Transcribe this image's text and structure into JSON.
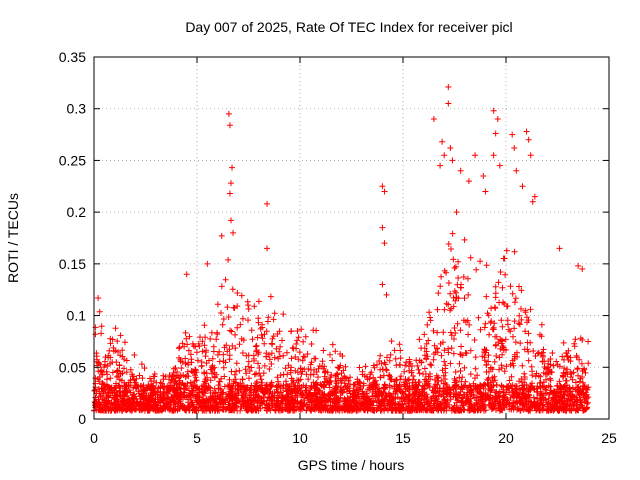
{
  "chart_data": {
    "type": "scatter",
    "title": "Day 007 of 2025, Rate Of TEC Index for receiver picl",
    "xlabel": "GPS time / hours",
    "ylabel": "ROTI / TECUs",
    "xlim": [
      0,
      25
    ],
    "ylim": [
      0,
      0.35
    ],
    "xticks": [
      "0",
      "5",
      "10",
      "15",
      "20",
      "25"
    ],
    "yticks": [
      "0",
      "0.05",
      "0.1",
      "0.15",
      "0.2",
      "0.25",
      "0.3",
      "0.35"
    ],
    "xtick_values": [
      0,
      5,
      10,
      15,
      20,
      25
    ],
    "ytick_values": [
      0,
      0.05,
      0.1,
      0.15,
      0.2,
      0.25,
      0.3,
      0.35
    ],
    "grid": true,
    "marker": "+",
    "color": "#ff0000",
    "envelope": {
      "x": [
        0,
        0.2,
        0.5,
        1,
        1.5,
        2,
        2.5,
        3,
        3.5,
        4,
        4.5,
        5,
        5.5,
        6,
        6.5,
        7,
        7.5,
        8,
        8.5,
        9,
        9.5,
        10,
        10.5,
        11,
        11.5,
        12,
        12.5,
        13,
        13.5,
        14,
        14.5,
        15,
        15.5,
        16,
        16.5,
        17,
        17.5,
        18,
        18.5,
        19,
        19.5,
        20,
        20.5,
        21,
        21.5,
        22,
        22.5,
        23,
        23.5,
        24
      ],
      "y": [
        0.06,
        0.1,
        0.07,
        0.08,
        0.06,
        0.05,
        0.04,
        0.035,
        0.035,
        0.05,
        0.09,
        0.07,
        0.08,
        0.1,
        0.13,
        0.12,
        0.1,
        0.11,
        0.12,
        0.09,
        0.08,
        0.08,
        0.08,
        0.07,
        0.06,
        0.05,
        0.04,
        0.04,
        0.045,
        0.06,
        0.07,
        0.07,
        0.06,
        0.08,
        0.12,
        0.15,
        0.17,
        0.16,
        0.14,
        0.13,
        0.15,
        0.16,
        0.13,
        0.12,
        0.09,
        0.07,
        0.07,
        0.07,
        0.08,
        0.07
      ]
    },
    "spikes": [
      {
        "x": 0.2,
        "y": 0.117
      },
      {
        "x": 4.5,
        "y": 0.14
      },
      {
        "x": 5.5,
        "y": 0.15
      },
      {
        "x": 6.2,
        "y": 0.177
      },
      {
        "x": 6.55,
        "y": 0.295
      },
      {
        "x": 6.6,
        "y": 0.284
      },
      {
        "x": 6.7,
        "y": 0.243
      },
      {
        "x": 6.65,
        "y": 0.228
      },
      {
        "x": 6.6,
        "y": 0.218
      },
      {
        "x": 6.65,
        "y": 0.192
      },
      {
        "x": 6.75,
        "y": 0.18
      },
      {
        "x": 8.4,
        "y": 0.208
      },
      {
        "x": 8.4,
        "y": 0.165
      },
      {
        "x": 14.0,
        "y": 0.225
      },
      {
        "x": 14.1,
        "y": 0.22
      },
      {
        "x": 14.0,
        "y": 0.185
      },
      {
        "x": 14.1,
        "y": 0.17
      },
      {
        "x": 14.0,
        "y": 0.13
      },
      {
        "x": 14.2,
        "y": 0.12
      },
      {
        "x": 16.5,
        "y": 0.29
      },
      {
        "x": 16.8,
        "y": 0.245
      },
      {
        "x": 17.2,
        "y": 0.321
      },
      {
        "x": 17.2,
        "y": 0.305
      },
      {
        "x": 17.3,
        "y": 0.262
      },
      {
        "x": 17.4,
        "y": 0.25
      },
      {
        "x": 16.9,
        "y": 0.268
      },
      {
        "x": 17.0,
        "y": 0.255
      },
      {
        "x": 17.6,
        "y": 0.2
      },
      {
        "x": 18.2,
        "y": 0.23
      },
      {
        "x": 18.5,
        "y": 0.255
      },
      {
        "x": 19.4,
        "y": 0.298
      },
      {
        "x": 19.6,
        "y": 0.29
      },
      {
        "x": 19.5,
        "y": 0.276
      },
      {
        "x": 19.4,
        "y": 0.255
      },
      {
        "x": 19.7,
        "y": 0.245
      },
      {
        "x": 20.3,
        "y": 0.275
      },
      {
        "x": 20.4,
        "y": 0.262
      },
      {
        "x": 20.5,
        "y": 0.24
      },
      {
        "x": 21.0,
        "y": 0.278
      },
      {
        "x": 21.1,
        "y": 0.27
      },
      {
        "x": 21.2,
        "y": 0.255
      },
      {
        "x": 21.4,
        "y": 0.215
      },
      {
        "x": 21.3,
        "y": 0.21
      },
      {
        "x": 22.6,
        "y": 0.165
      },
      {
        "x": 23.5,
        "y": 0.148
      },
      {
        "x": 23.7,
        "y": 0.145
      },
      {
        "x": 19.0,
        "y": 0.22
      },
      {
        "x": 18.9,
        "y": 0.235
      },
      {
        "x": 20.8,
        "y": 0.225
      },
      {
        "x": 17.8,
        "y": 0.24
      }
    ]
  }
}
